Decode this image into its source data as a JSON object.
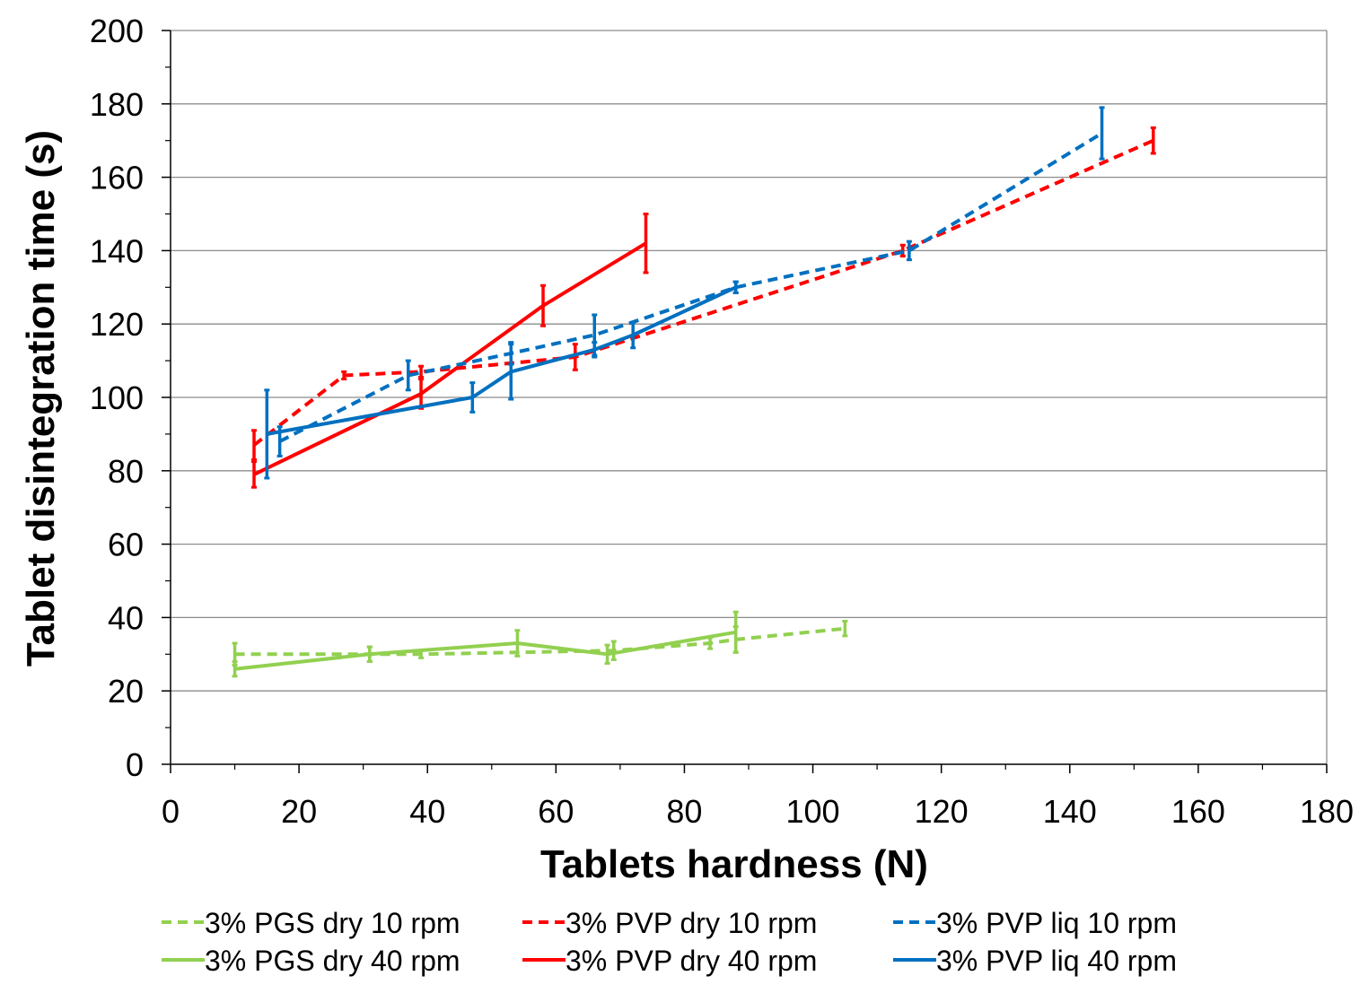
{
  "chart_data": {
    "type": "line",
    "xlabel": "Tablets hardness (N)",
    "ylabel": "Tablet disintegration time (s)",
    "xlim": [
      0,
      180
    ],
    "ylim": [
      0,
      200
    ],
    "x_ticks": [
      0,
      20,
      40,
      60,
      80,
      100,
      120,
      140,
      160,
      180
    ],
    "y_ticks": [
      0,
      20,
      40,
      60,
      80,
      100,
      120,
      140,
      160,
      180,
      200
    ],
    "grid": "horizontal",
    "legend_position": "bottom",
    "series": [
      {
        "name": "3% PGS dry 10 rpm",
        "color": "#92d050",
        "dash": true,
        "points": [
          {
            "x": 10,
            "y": 30,
            "err": 3
          },
          {
            "x": 31,
            "y": 30,
            "err": 2
          },
          {
            "x": 39,
            "y": 30,
            "err": 1
          },
          {
            "x": 69,
            "y": 31,
            "err": 2.5
          },
          {
            "x": 84,
            "y": 33,
            "err": 1.5
          },
          {
            "x": 88,
            "y": 34,
            "err": 3.5
          },
          {
            "x": 105,
            "y": 37,
            "err": 2
          }
        ]
      },
      {
        "name": "3% PGS dry 40 rpm",
        "color": "#92d050",
        "dash": false,
        "points": [
          {
            "x": 10,
            "y": 26,
            "err": 2
          },
          {
            "x": 31,
            "y": 30,
            "err": 2
          },
          {
            "x": 54,
            "y": 33,
            "err": 3.5
          },
          {
            "x": 68,
            "y": 30,
            "err": 2.5
          },
          {
            "x": 88,
            "y": 36,
            "err": 5.5
          }
        ]
      },
      {
        "name": "3% PVP dry 10 rpm",
        "color": "#ff0000",
        "dash": true,
        "points": [
          {
            "x": 13,
            "y": 87,
            "err": 4
          },
          {
            "x": 27,
            "y": 106,
            "err": 1
          },
          {
            "x": 39,
            "y": 107,
            "err": 1.5
          },
          {
            "x": 63,
            "y": 111,
            "err": 3.5
          },
          {
            "x": 114,
            "y": 140,
            "err": 1.5
          },
          {
            "x": 153,
            "y": 170,
            "err": 3.5
          }
        ]
      },
      {
        "name": "3% PVP dry 40 rpm",
        "color": "#ff0000",
        "dash": false,
        "points": [
          {
            "x": 13,
            "y": 79,
            "err": 3.5
          },
          {
            "x": 39,
            "y": 101,
            "err": 4
          },
          {
            "x": 58,
            "y": 125,
            "err": 5.5
          },
          {
            "x": 74,
            "y": 142,
            "err": 8
          }
        ]
      },
      {
        "name": "3% PVP liq 10 rpm",
        "color": "#0070c0",
        "dash": true,
        "points": [
          {
            "x": 17,
            "y": 88,
            "err": 4
          },
          {
            "x": 37,
            "y": 106,
            "err": 4
          },
          {
            "x": 53,
            "y": 112,
            "err": 3
          },
          {
            "x": 66,
            "y": 117,
            "err": 5.5
          },
          {
            "x": 88,
            "y": 130,
            "err": 1.5
          },
          {
            "x": 115,
            "y": 140,
            "err": 2.5
          },
          {
            "x": 145,
            "y": 172,
            "err": 7
          }
        ]
      },
      {
        "name": "3% PVP liq 40 rpm",
        "color": "#0070c0",
        "dash": false,
        "points": [
          {
            "x": 15,
            "y": 90,
            "err": 12
          },
          {
            "x": 47,
            "y": 100,
            "err": 4
          },
          {
            "x": 53,
            "y": 107,
            "err": 7.5
          },
          {
            "x": 66,
            "y": 113,
            "err": 2
          },
          {
            "x": 72,
            "y": 117,
            "err": 3.5
          },
          {
            "x": 88,
            "y": 130,
            "err": 1.5
          }
        ]
      }
    ]
  }
}
